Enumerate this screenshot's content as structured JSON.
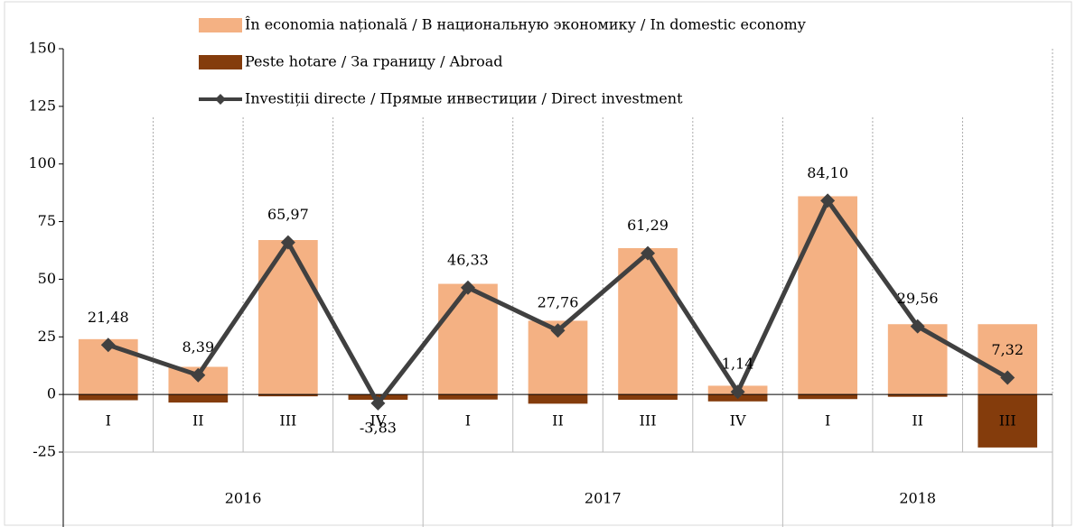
{
  "chart_data": {
    "type": "bar_line",
    "groups": [
      {
        "label": "2016",
        "categories": [
          "I",
          "II",
          "III",
          "IV"
        ]
      },
      {
        "label": "2017",
        "categories": [
          "I",
          "II",
          "III",
          "IV"
        ]
      },
      {
        "label": "2018",
        "categories": [
          "I",
          "II",
          "III"
        ]
      }
    ],
    "series": [
      {
        "name": "În economia națională / В национальную экономику / In domestic economy",
        "kind": "bar",
        "color": "#f4b183",
        "values": [
          24,
          12,
          67,
          -1.5,
          48,
          32,
          63.5,
          3.8,
          86,
          30.5,
          30.5
        ]
      },
      {
        "name": "Peste hotare / За границу / Abroad",
        "kind": "bar",
        "color": "#843c0c",
        "values": [
          -2.5,
          -3.5,
          -0.8,
          -2.3,
          -2.2,
          -4,
          -2.3,
          -3,
          -2,
          -1,
          -23
        ]
      },
      {
        "name": "Investiții directe / Прямые инвестиции / Direct investment",
        "kind": "line",
        "color": "#404040",
        "values": [
          21.48,
          8.39,
          65.97,
          -3.83,
          46.33,
          27.76,
          61.29,
          1.14,
          84.1,
          29.56,
          7.32
        ],
        "value_labels": [
          "21,48",
          "8,39",
          "65,97",
          "-3,83",
          "46,33",
          "27,76",
          "61,29",
          "1,14",
          "84,10",
          "29,56",
          "7,32"
        ]
      }
    ],
    "ylim": [
      -25,
      150
    ],
    "yticks": [
      -25,
      0,
      25,
      50,
      75,
      100,
      125,
      150
    ]
  }
}
